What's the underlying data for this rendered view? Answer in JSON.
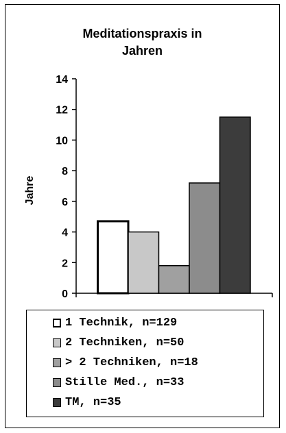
{
  "chart_data": {
    "type": "bar",
    "title_lines": [
      "Meditationspraxis in",
      "Jahren"
    ],
    "ylabel": "Jahre",
    "ylim": [
      0,
      14
    ],
    "yticks": [
      0,
      2,
      4,
      6,
      8,
      10,
      12,
      14
    ],
    "series": [
      {
        "name": "1 Technik, n=129",
        "value": 4.7,
        "color": "#ffffff",
        "stroke_heavy": true
      },
      {
        "name": "2 Techniken, n=50",
        "value": 4.0,
        "color": "#c8c8c8"
      },
      {
        "name": "> 2 Techniken, n=18",
        "value": 1.8,
        "color": "#a0a0a0"
      },
      {
        "name": "Stille Med., n=33",
        "value": 7.2,
        "color": "#8c8c8c"
      },
      {
        "name": "TM, n=35",
        "value": 11.5,
        "color": "#3c3c3c"
      }
    ],
    "legend_position": "bottom"
  }
}
